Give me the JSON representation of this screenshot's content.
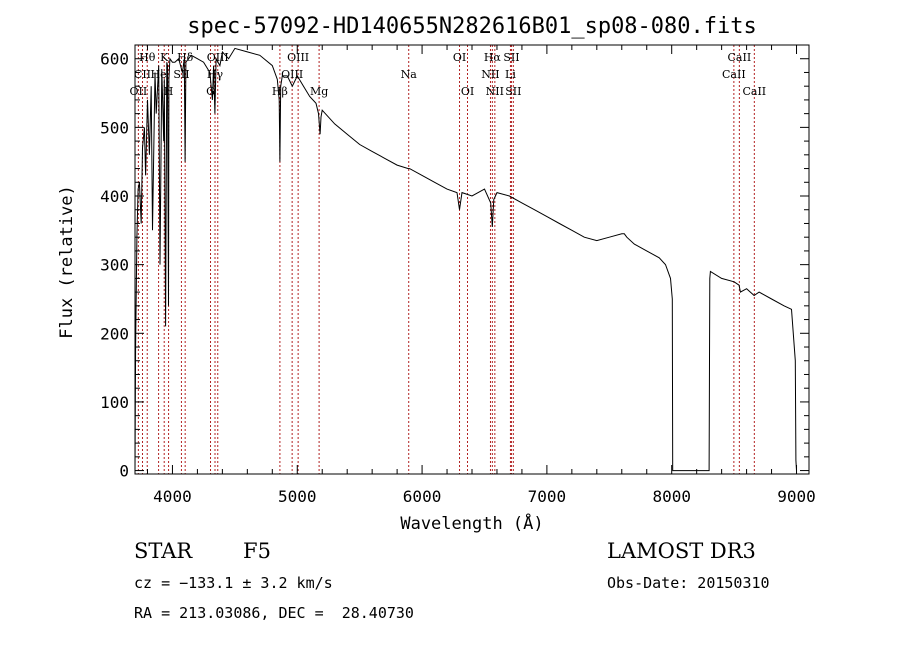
{
  "chart_data": {
    "type": "line",
    "title": "spec-57092-HD140655N282616B01_sp08-080.fits",
    "xlabel": "Wavelength (Å)",
    "ylabel": "Flux (relative)",
    "xlim": [
      3700,
      9100
    ],
    "ylim": [
      -5,
      620
    ],
    "xticks": [
      4000,
      5000,
      6000,
      7000,
      8000,
      9000
    ],
    "yticks": [
      0,
      100,
      200,
      300,
      400,
      500,
      600
    ],
    "series": [
      {
        "name": "flux",
        "x": [
          3700,
          3705,
          3715,
          3725,
          3735,
          3750,
          3760,
          3775,
          3785,
          3800,
          3815,
          3830,
          3840,
          3860,
          3870,
          3890,
          3900,
          3915,
          3930,
          3935,
          3945,
          3955,
          3960,
          3968,
          3972,
          3980,
          4000,
          4020,
          4050,
          4080,
          4095,
          4101,
          4108,
          4150,
          4200,
          4250,
          4300,
          4320,
          4330,
          4340,
          4350,
          4380,
          4400,
          4450,
          4500,
          4600,
          4700,
          4800,
          4840,
          4855,
          4861,
          4867,
          4880,
          4920,
          4960,
          5000,
          5050,
          5100,
          5150,
          5170,
          5183,
          5190,
          5200,
          5300,
          5400,
          5500,
          5600,
          5700,
          5800,
          5890,
          5900,
          6000,
          6100,
          6200,
          6280,
          6300,
          6320,
          6400,
          6500,
          6550,
          6563,
          6575,
          6600,
          6700,
          6800,
          6900,
          7000,
          7100,
          7200,
          7300,
          7400,
          7500,
          7600,
          7620,
          7640,
          7700,
          7800,
          7900,
          7950,
          7990,
          8005,
          8008,
          8300,
          8305,
          8310,
          8400,
          8500,
          8540,
          8550,
          8600,
          8660,
          8700,
          8800,
          8900,
          8960,
          8990,
          8995,
          9000
        ],
        "y": [
          0,
          180,
          340,
          410,
          420,
          360,
          470,
          500,
          430,
          540,
          460,
          560,
          350,
          580,
          520,
          590,
          300,
          585,
          480,
          570,
          210,
          595,
          590,
          240,
          570,
          600,
          595,
          595,
          600,
          580,
          600,
          450,
          595,
          605,
          600,
          595,
          580,
          540,
          590,
          520,
          600,
          590,
          610,
          600,
          615,
          610,
          605,
          590,
          570,
          540,
          450,
          560,
          575,
          575,
          560,
          575,
          560,
          545,
          535,
          520,
          490,
          515,
          525,
          505,
          490,
          475,
          465,
          455,
          445,
          440,
          440,
          430,
          420,
          410,
          405,
          380,
          405,
          400,
          410,
          390,
          355,
          395,
          405,
          400,
          390,
          380,
          370,
          360,
          350,
          340,
          335,
          340,
          345,
          345,
          340,
          330,
          320,
          310,
          300,
          280,
          250,
          0,
          0,
          280,
          290,
          280,
          275,
          270,
          260,
          265,
          255,
          260,
          250,
          240,
          235,
          160,
          15,
          0
        ],
        "color": "#000000"
      }
    ],
    "lines": [
      {
        "label": "Hθ",
        "wave": 3798,
        "row": 1
      },
      {
        "label": "CII",
        "wave": 3760,
        "row": 2
      },
      {
        "label": "OII",
        "wave": 3727,
        "row": 3
      },
      {
        "label": "K",
        "wave": 3934,
        "row": 1
      },
      {
        "label": "He",
        "wave": 3889,
        "row": 2
      },
      {
        "label": "H",
        "wave": 3969,
        "row": 3
      },
      {
        "label": "Hδ",
        "wave": 4102,
        "row": 1
      },
      {
        "label": "SII",
        "wave": 4072,
        "row": 2
      },
      {
        "label": "G",
        "wave": 4305,
        "row": 3
      },
      {
        "label": "Hγ",
        "wave": 4341,
        "row": 2
      },
      {
        "label": "OIII",
        "wave": 4363,
        "row": 1
      },
      {
        "label": "OIII",
        "wave": 5007,
        "row": 1
      },
      {
        "label": "OIII",
        "wave": 4959,
        "row": 2
      },
      {
        "label": "Hβ",
        "wave": 4861,
        "row": 3
      },
      {
        "label": "Mg",
        "wave": 5175,
        "row": 3
      },
      {
        "label": "Na",
        "wave": 5893,
        "row": 2
      },
      {
        "label": "OI",
        "wave": 6300,
        "row": 1
      },
      {
        "label": "OI",
        "wave": 6364,
        "row": 3
      },
      {
        "label": "Hα",
        "wave": 6563,
        "row": 1
      },
      {
        "label": "NII",
        "wave": 6548,
        "row": 2
      },
      {
        "label": "NII",
        "wave": 6583,
        "row": 3
      },
      {
        "label": "SII",
        "wave": 6716,
        "row": 1
      },
      {
        "label": "Li",
        "wave": 6708,
        "row": 2
      },
      {
        "label": "SII",
        "wave": 6731,
        "row": 3
      },
      {
        "label": "CaII",
        "wave": 8542,
        "row": 1
      },
      {
        "label": "CaII",
        "wave": 8498,
        "row": 2
      },
      {
        "label": "CaII",
        "wave": 8662,
        "row": 3
      }
    ]
  },
  "info": {
    "class": "STAR",
    "subclass": "F5",
    "survey": "LAMOST DR3",
    "cz": "cz = −133.1 ± 3.2 km/s",
    "obsdate": "Obs-Date: 20150310",
    "radec": "RA = 213.03086, DEC =  28.40730"
  },
  "colors": {
    "line_marker": "#b22222",
    "spectrum": "#000000",
    "axes": "#000000"
  }
}
